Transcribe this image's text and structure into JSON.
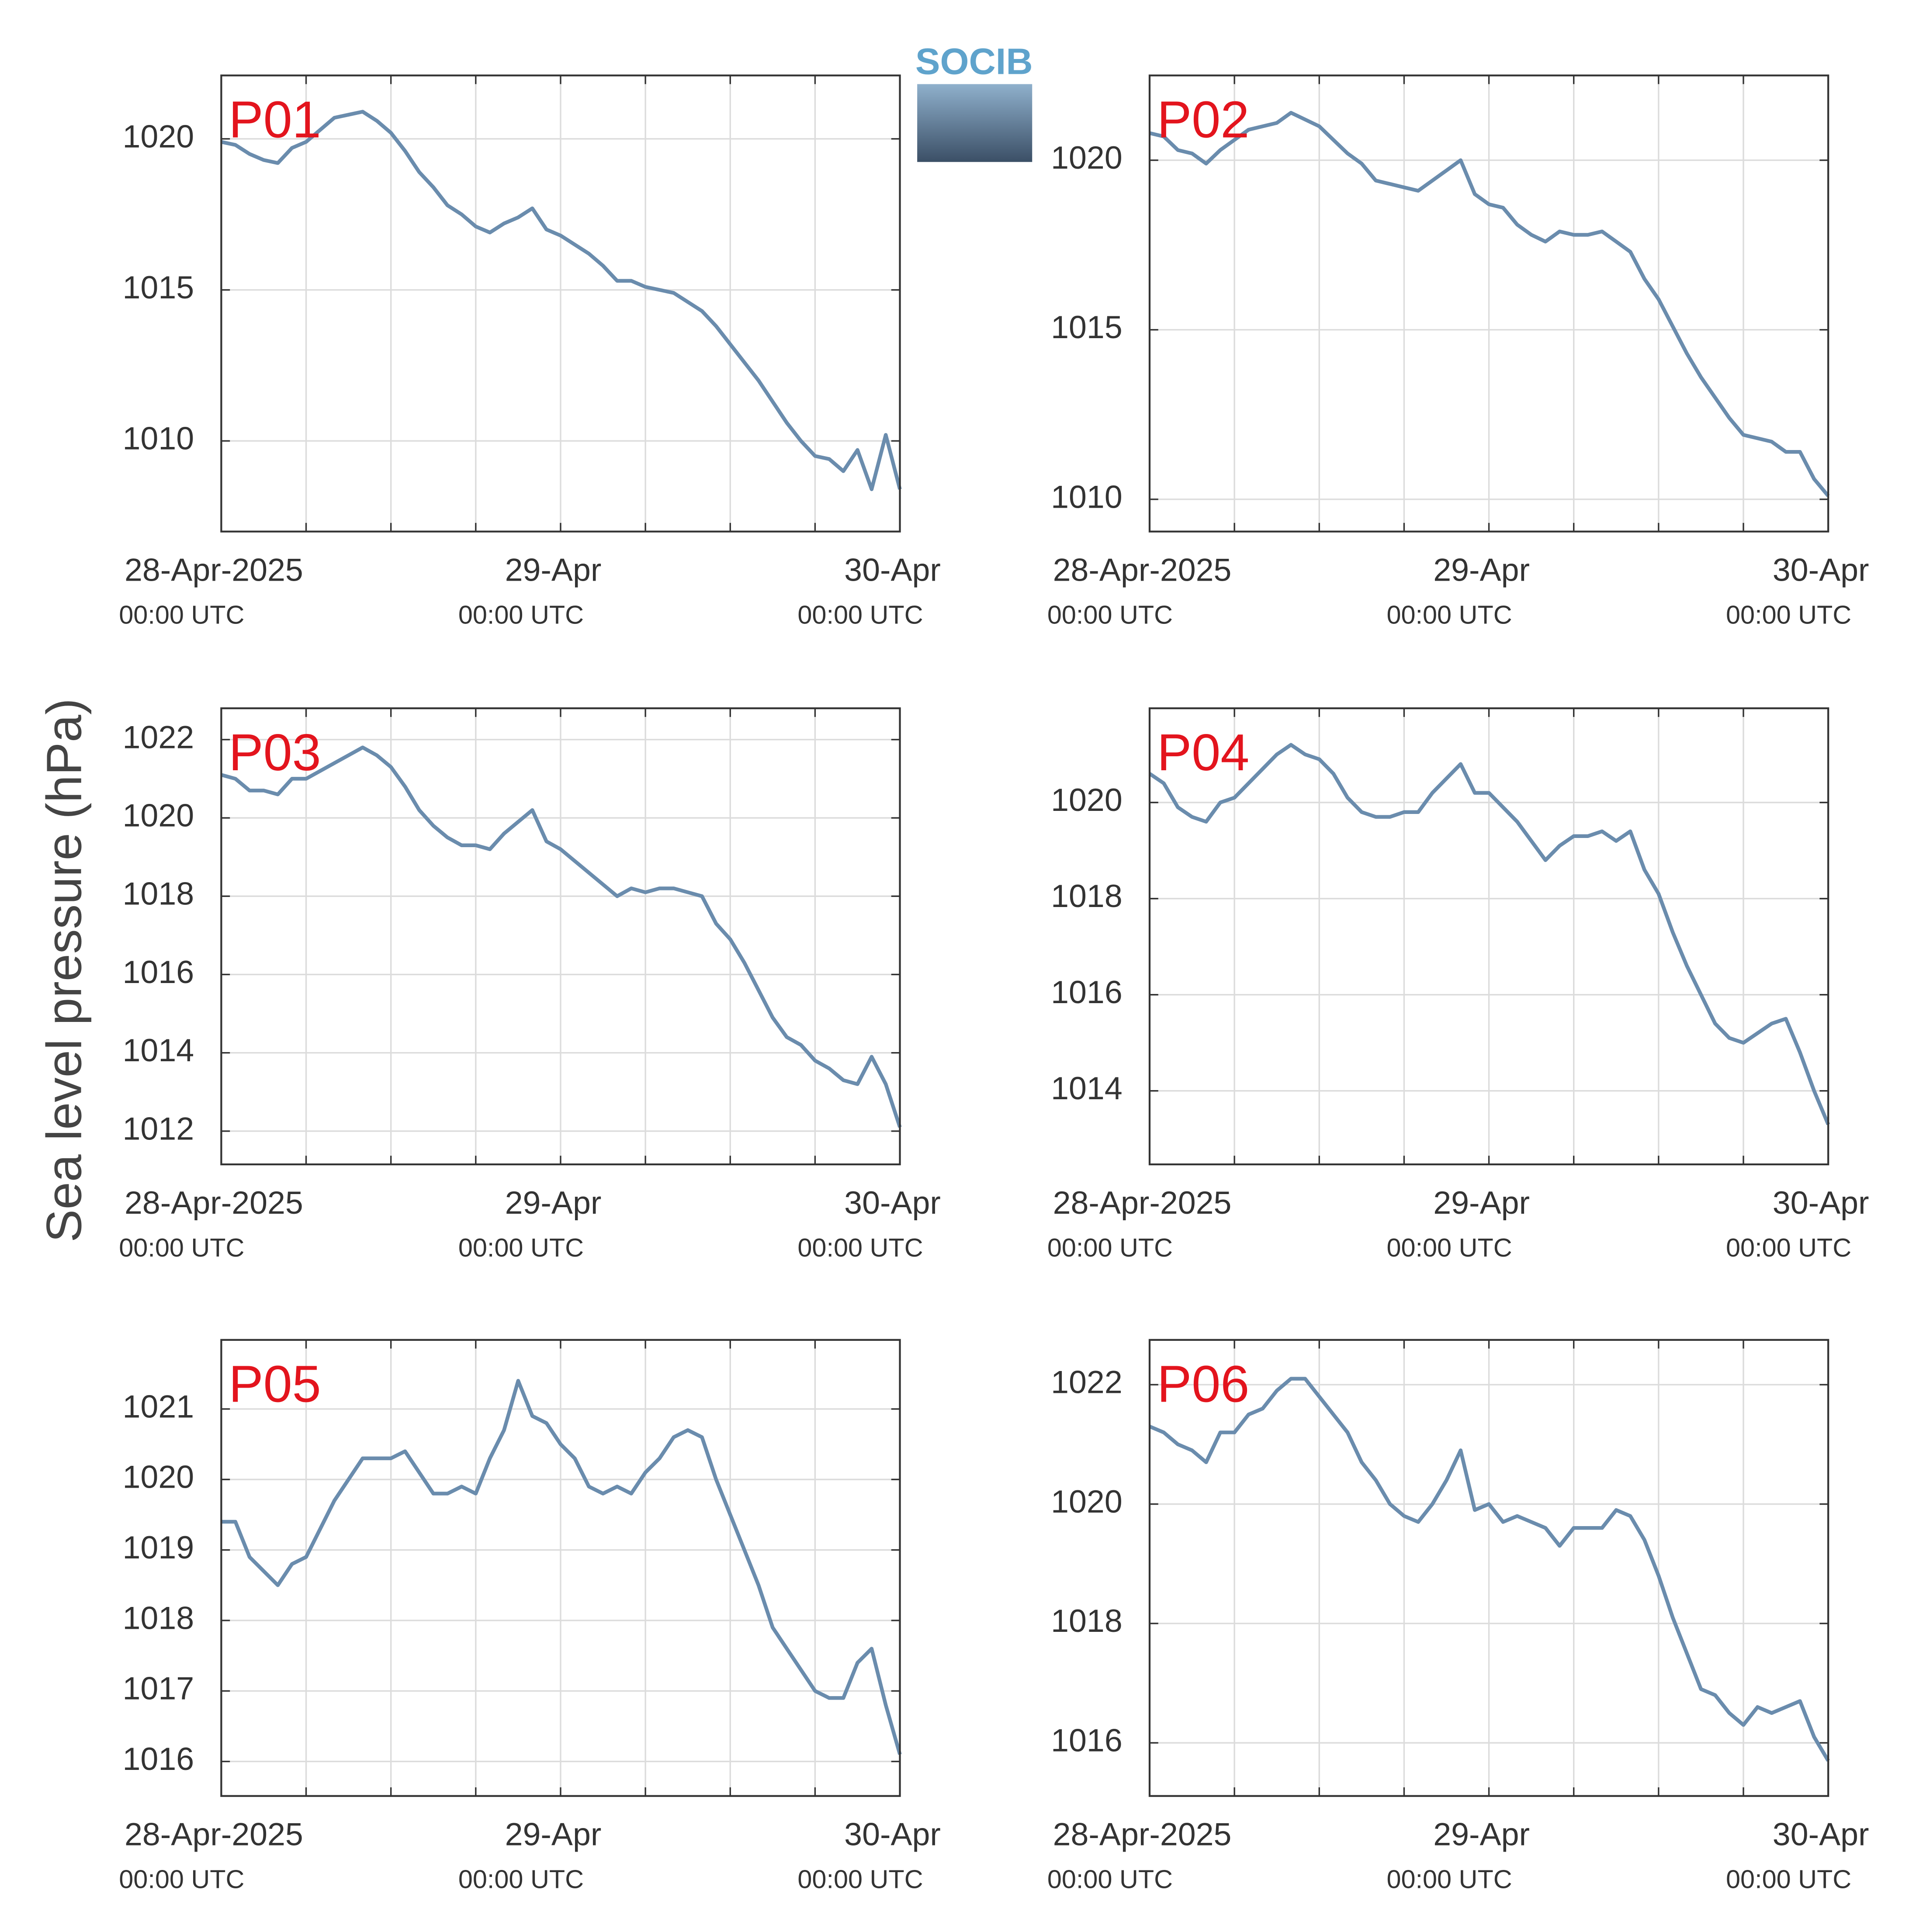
{
  "ylabel": "Sea level pressure (hPa)",
  "logo": "SOCIB",
  "chart_data": [
    {
      "type": "line",
      "title": "P01",
      "xlim": [
        0,
        48
      ],
      "ylim": [
        1007,
        1022.1
      ],
      "yticks": [
        1010,
        1015,
        1020
      ],
      "xticks": [
        {
          "value": 0,
          "label": "28-Apr-2025",
          "label2": "00:00 UTC"
        },
        {
          "value": 24,
          "label": "29-Apr",
          "label2": "00:00 UTC"
        },
        {
          "value": 48,
          "label": "30-Apr",
          "label2": "00:00 UTC"
        }
      ],
      "xgrid": [
        6,
        12,
        18,
        30,
        36,
        42
      ],
      "grid": true,
      "x": [
        0,
        1,
        2,
        3,
        4,
        5,
        6,
        7,
        8,
        9,
        10,
        11,
        12,
        13,
        14,
        15,
        16,
        17,
        18,
        19,
        20,
        21,
        22,
        23,
        24,
        25,
        26,
        27,
        28,
        29,
        30,
        31,
        32,
        33,
        34,
        35,
        36,
        37,
        38,
        39,
        40,
        41,
        42,
        43,
        44,
        45,
        46,
        47,
        48
      ],
      "series": [
        {
          "color": "#6a8cad",
          "values": [
            1019.9,
            1019.8,
            1019.5,
            1019.3,
            1019.2,
            1019.7,
            1019.9,
            1020.3,
            1020.7,
            1020.8,
            1020.9,
            1020.6,
            1020.2,
            1019.6,
            1018.9,
            1018.4,
            1017.8,
            1017.5,
            1017.1,
            1016.9,
            1017.2,
            1017.4,
            1017.7,
            1017.0,
            1016.8,
            1016.5,
            1016.2,
            1015.8,
            1015.3,
            1015.3,
            1015.1,
            1015.0,
            1014.9,
            1014.6,
            1014.3,
            1013.8,
            1013.2,
            1012.6,
            1012.0,
            1011.3,
            1010.6,
            1010.0,
            1009.5,
            1009.4,
            1009.0,
            1009.7,
            1008.4,
            1010.2,
            1008.4
          ]
        }
      ]
    },
    {
      "type": "line",
      "title": "P02",
      "xlim": [
        0,
        48
      ],
      "ylim": [
        1009.05,
        1022.5
      ],
      "yticks": [
        1010,
        1015,
        1020
      ],
      "xticks": [
        {
          "value": 0,
          "label": "28-Apr-2025",
          "label2": "00:00 UTC"
        },
        {
          "value": 24,
          "label": "29-Apr",
          "label2": "00:00 UTC"
        },
        {
          "value": 48,
          "label": "30-Apr",
          "label2": "00:00 UTC"
        }
      ],
      "xgrid": [
        6,
        12,
        18,
        30,
        36,
        42
      ],
      "grid": true,
      "x": [
        0,
        1,
        2,
        3,
        4,
        5,
        6,
        7,
        8,
        9,
        10,
        11,
        12,
        13,
        14,
        15,
        16,
        17,
        18,
        19,
        20,
        21,
        22,
        23,
        24,
        25,
        26,
        27,
        28,
        29,
        30,
        31,
        32,
        33,
        34,
        35,
        36,
        37,
        38,
        39,
        40,
        41,
        42,
        43,
        44,
        45,
        46,
        47,
        48
      ],
      "series": [
        {
          "color": "#6a8cad",
          "values": [
            1020.8,
            1020.7,
            1020.3,
            1020.2,
            1019.9,
            1020.3,
            1020.6,
            1020.9,
            1021.0,
            1021.1,
            1021.4,
            1021.2,
            1021.0,
            1020.6,
            1020.2,
            1019.9,
            1019.4,
            1019.3,
            1019.2,
            1019.1,
            1019.4,
            1019.7,
            1020.0,
            1019.0,
            1018.7,
            1018.6,
            1018.1,
            1017.8,
            1017.6,
            1017.9,
            1017.8,
            1017.8,
            1017.9,
            1017.6,
            1017.3,
            1016.5,
            1015.9,
            1015.1,
            1014.3,
            1013.6,
            1013.0,
            1012.4,
            1011.9,
            1011.8,
            1011.7,
            1011.4,
            1011.4,
            1010.6,
            1010.1
          ]
        }
      ]
    },
    {
      "type": "line",
      "title": "P03",
      "xlim": [
        0,
        48
      ],
      "ylim": [
        1011.15,
        1022.8
      ],
      "yticks": [
        1012,
        1014,
        1016,
        1018,
        1020,
        1022
      ],
      "xticks": [
        {
          "value": 0,
          "label": "28-Apr-2025",
          "label2": "00:00 UTC"
        },
        {
          "value": 24,
          "label": "29-Apr",
          "label2": "00:00 UTC"
        },
        {
          "value": 48,
          "label": "30-Apr",
          "label2": "00:00 UTC"
        }
      ],
      "xgrid": [
        6,
        12,
        18,
        30,
        36,
        42
      ],
      "grid": true,
      "x": [
        0,
        1,
        2,
        3,
        4,
        5,
        6,
        7,
        8,
        9,
        10,
        11,
        12,
        13,
        14,
        15,
        16,
        17,
        18,
        19,
        20,
        21,
        22,
        23,
        24,
        25,
        26,
        27,
        28,
        29,
        30,
        31,
        32,
        33,
        34,
        35,
        36,
        37,
        38,
        39,
        40,
        41,
        42,
        43,
        44,
        45,
        46,
        47,
        48
      ],
      "series": [
        {
          "color": "#6a8cad",
          "values": [
            1021.1,
            1021.0,
            1020.7,
            1020.7,
            1020.6,
            1021.0,
            1021.0,
            1021.2,
            1021.4,
            1021.6,
            1021.8,
            1021.6,
            1021.3,
            1020.8,
            1020.2,
            1019.8,
            1019.5,
            1019.3,
            1019.3,
            1019.2,
            1019.6,
            1019.9,
            1020.2,
            1019.4,
            1019.2,
            1018.9,
            1018.6,
            1018.3,
            1018.0,
            1018.2,
            1018.1,
            1018.2,
            1018.2,
            1018.1,
            1018.0,
            1017.3,
            1016.9,
            1016.3,
            1015.6,
            1014.9,
            1014.4,
            1014.2,
            1013.8,
            1013.6,
            1013.3,
            1013.2,
            1013.9,
            1013.2,
            1012.1
          ]
        }
      ]
    },
    {
      "type": "line",
      "title": "P04",
      "xlim": [
        0,
        48
      ],
      "ylim": [
        1012.47,
        1021.96
      ],
      "yticks": [
        1014,
        1016,
        1018,
        1020
      ],
      "xticks": [
        {
          "value": 0,
          "label": "28-Apr-2025",
          "label2": "00:00 UTC"
        },
        {
          "value": 24,
          "label": "29-Apr",
          "label2": "00:00 UTC"
        },
        {
          "value": 48,
          "label": "30-Apr",
          "label2": "00:00 UTC"
        }
      ],
      "xgrid": [
        6,
        12,
        18,
        30,
        36,
        42
      ],
      "grid": true,
      "x": [
        0,
        1,
        2,
        3,
        4,
        5,
        6,
        7,
        8,
        9,
        10,
        11,
        12,
        13,
        14,
        15,
        16,
        17,
        18,
        19,
        20,
        21,
        22,
        23,
        24,
        25,
        26,
        27,
        28,
        29,
        30,
        31,
        32,
        33,
        34,
        35,
        36,
        37,
        38,
        39,
        40,
        41,
        42,
        43,
        44,
        45,
        46,
        47,
        48
      ],
      "series": [
        {
          "color": "#6a8cad",
          "values": [
            1020.6,
            1020.4,
            1019.9,
            1019.7,
            1019.6,
            1020.0,
            1020.1,
            1020.4,
            1020.7,
            1021.0,
            1021.2,
            1021.0,
            1020.9,
            1020.6,
            1020.1,
            1019.8,
            1019.7,
            1019.7,
            1019.8,
            1019.8,
            1020.2,
            1020.5,
            1020.8,
            1020.2,
            1020.2,
            1019.9,
            1019.6,
            1019.2,
            1018.8,
            1019.1,
            1019.3,
            1019.3,
            1019.4,
            1019.2,
            1019.4,
            1018.6,
            1018.1,
            1017.3,
            1016.6,
            1016.0,
            1015.4,
            1015.1,
            1015.0,
            1015.2,
            1015.4,
            1015.5,
            1014.8,
            1014.0,
            1013.3
          ]
        }
      ]
    },
    {
      "type": "line",
      "title": "P05",
      "xlim": [
        0,
        48
      ],
      "ylim": [
        1015.51,
        1021.98
      ],
      "yticks": [
        1016,
        1017,
        1018,
        1019,
        1020,
        1021
      ],
      "xticks": [
        {
          "value": 0,
          "label": "28-Apr-2025",
          "label2": "00:00 UTC"
        },
        {
          "value": 24,
          "label": "29-Apr",
          "label2": "00:00 UTC"
        },
        {
          "value": 48,
          "label": "30-Apr",
          "label2": "00:00 UTC"
        }
      ],
      "xgrid": [
        6,
        12,
        18,
        30,
        36,
        42
      ],
      "grid": true,
      "x": [
        0,
        1,
        2,
        3,
        4,
        5,
        6,
        7,
        8,
        9,
        10,
        11,
        12,
        13,
        14,
        15,
        16,
        17,
        18,
        19,
        20,
        21,
        22,
        23,
        24,
        25,
        26,
        27,
        28,
        29,
        30,
        31,
        32,
        33,
        34,
        35,
        36,
        37,
        38,
        39,
        40,
        41,
        42,
        43,
        44,
        45,
        46,
        47,
        48
      ],
      "series": [
        {
          "color": "#6a8cad",
          "values": [
            1019.4,
            1019.4,
            1018.9,
            1018.7,
            1018.5,
            1018.8,
            1018.9,
            1019.3,
            1019.7,
            1020.0,
            1020.3,
            1020.3,
            1020.3,
            1020.4,
            1020.1,
            1019.8,
            1019.8,
            1019.9,
            1019.8,
            1020.3,
            1020.7,
            1021.4,
            1020.9,
            1020.8,
            1020.5,
            1020.3,
            1019.9,
            1019.8,
            1019.9,
            1019.8,
            1020.1,
            1020.3,
            1020.6,
            1020.7,
            1020.6,
            1020.0,
            1019.5,
            1019.0,
            1018.5,
            1017.9,
            1017.6,
            1017.3,
            1017.0,
            1016.9,
            1016.9,
            1017.4,
            1017.6,
            1016.8,
            1016.1
          ]
        }
      ]
    },
    {
      "type": "line",
      "title": "P06",
      "xlim": [
        0,
        48
      ],
      "ylim": [
        1015.11,
        1022.75
      ],
      "yticks": [
        1016,
        1018,
        1020,
        1022
      ],
      "xticks": [
        {
          "value": 0,
          "label": "28-Apr-2025",
          "label2": "00:00 UTC"
        },
        {
          "value": 24,
          "label": "29-Apr",
          "label2": "00:00 UTC"
        },
        {
          "value": 48,
          "label": "30-Apr",
          "label2": "00:00 UTC"
        }
      ],
      "xgrid": [
        6,
        12,
        18,
        30,
        36,
        42
      ],
      "grid": true,
      "x": [
        0,
        1,
        2,
        3,
        4,
        5,
        6,
        7,
        8,
        9,
        10,
        11,
        12,
        13,
        14,
        15,
        16,
        17,
        18,
        19,
        20,
        21,
        22,
        23,
        24,
        25,
        26,
        27,
        28,
        29,
        30,
        31,
        32,
        33,
        34,
        35,
        36,
        37,
        38,
        39,
        40,
        41,
        42,
        43,
        44,
        45,
        46,
        47,
        48
      ],
      "series": [
        {
          "color": "#6a8cad",
          "values": [
            1021.3,
            1021.2,
            1021.0,
            1020.9,
            1020.7,
            1021.2,
            1021.2,
            1021.5,
            1021.6,
            1021.9,
            1022.1,
            1022.1,
            1021.8,
            1021.5,
            1021.2,
            1020.7,
            1020.4,
            1020.0,
            1019.8,
            1019.7,
            1020.0,
            1020.4,
            1020.9,
            1019.9,
            1020.0,
            1019.7,
            1019.8,
            1019.7,
            1019.6,
            1019.3,
            1019.6,
            1019.6,
            1019.6,
            1019.9,
            1019.8,
            1019.4,
            1018.8,
            1018.1,
            1017.5,
            1016.9,
            1016.8,
            1016.5,
            1016.3,
            1016.6,
            1016.5,
            1016.6,
            1016.7,
            1016.1,
            1015.7
          ]
        }
      ]
    }
  ]
}
